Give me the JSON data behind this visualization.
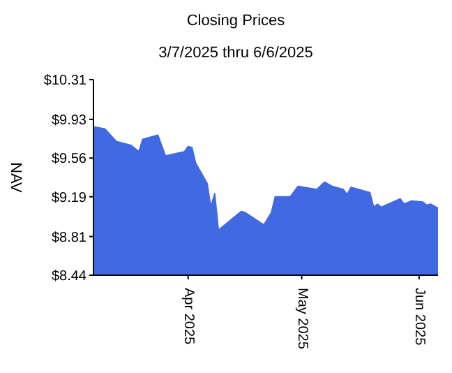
{
  "chart_data": {
    "type": "area",
    "title": "Closing Prices",
    "subtitle": "3/7/2025 thru 6/6/2025",
    "ylabel": "NAV",
    "x": [
      "2025-03-07",
      "2025-03-10",
      "2025-03-13",
      "2025-03-17",
      "2025-03-19",
      "2025-03-20",
      "2025-03-24",
      "2025-03-26",
      "2025-03-31",
      "2025-04-01",
      "2025-04-02",
      "2025-04-03",
      "2025-04-06",
      "2025-04-07",
      "2025-04-08",
      "2025-04-09",
      "2025-04-15",
      "2025-04-16",
      "2025-04-21",
      "2025-04-23",
      "2025-04-24",
      "2025-04-28",
      "2025-04-30",
      "2025-05-05",
      "2025-05-07",
      "2025-05-09",
      "2025-05-12",
      "2025-05-13",
      "2025-05-14",
      "2025-05-19",
      "2025-05-20",
      "2025-05-21",
      "2025-05-22",
      "2025-05-27",
      "2025-05-28",
      "2025-05-30",
      "2025-06-02",
      "2025-06-03",
      "2025-06-04",
      "2025-06-06"
    ],
    "series": [
      {
        "color": "#4169e1",
        "values": [
          9.86,
          9.84,
          9.72,
          9.68,
          9.62,
          9.74,
          9.78,
          9.58,
          9.62,
          9.67,
          9.66,
          9.51,
          9.32,
          9.09,
          9.22,
          8.87,
          9.05,
          9.04,
          8.92,
          9.04,
          9.19,
          9.19,
          9.29,
          9.26,
          9.33,
          9.29,
          9.26,
          9.21,
          9.28,
          9.23,
          9.09,
          9.12,
          9.09,
          9.17,
          9.12,
          9.15,
          9.14,
          9.11,
          9.12,
          9.08
        ]
      }
    ],
    "xlim": [
      "2025-03-07",
      "2025-06-06"
    ],
    "xticks": [
      {
        "value": "2025-04-01",
        "label": "Apr 2025"
      },
      {
        "value": "2025-05-01",
        "label": "May 2025"
      },
      {
        "value": "2025-06-01",
        "label": "Jun 2025"
      }
    ],
    "ylim": [
      8.44,
      10.31
    ],
    "yticks": [
      {
        "value": 8.44,
        "label": "$8.44"
      },
      {
        "value": 8.81,
        "label": "$8.81"
      },
      {
        "value": 9.19,
        "label": "$9.19"
      },
      {
        "value": 9.56,
        "label": "$9.56"
      },
      {
        "value": 9.93,
        "label": "$9.93"
      },
      {
        "value": 10.31,
        "label": "$10.31"
      }
    ],
    "grid": false,
    "legend": false
  }
}
